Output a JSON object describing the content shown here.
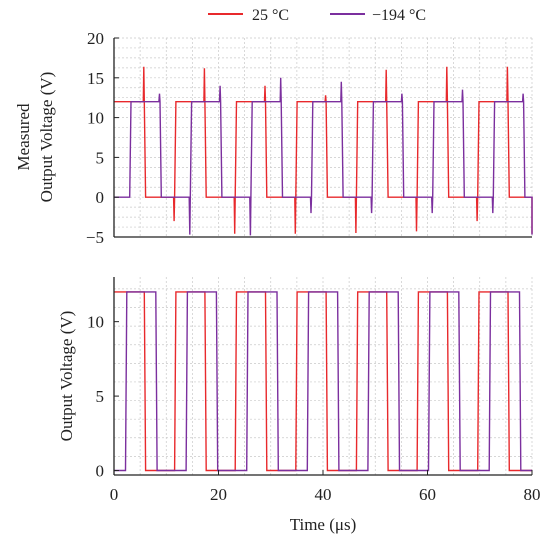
{
  "legend": {
    "position": "top",
    "items": [
      {
        "label": "25 °C",
        "color": "#e8292c"
      },
      {
        "label": "−194 °C",
        "color": "#7b2f9e"
      }
    ]
  },
  "chart_data": [
    {
      "type": "line",
      "xlabel": "",
      "ylabel_line1": "Measured",
      "ylabel_line2": "Output Voltage (V)",
      "xlim": [
        0,
        80
      ],
      "ylim": [
        -5,
        20
      ],
      "xgrid": [
        0,
        5,
        10,
        15,
        20,
        25,
        30,
        35,
        40,
        45,
        50,
        55,
        60,
        65,
        70,
        75,
        80
      ],
      "yticks": [
        -5,
        0,
        5,
        10,
        15,
        20
      ],
      "ytick_labels": [
        "−5",
        "0",
        "5",
        "10",
        "15",
        "20"
      ],
      "grid": true,
      "period_us": 11.6,
      "series": [
        {
          "name": "25 °C",
          "color": "#e8292c",
          "low": 0,
          "high": 12,
          "first_rise_us": 0,
          "overshoot_high": [
            16.4,
            16.2,
            14.0,
            12.8,
            16.0,
            16.4,
            16.4
          ],
          "undershoot_low": [
            -3.0,
            -4.6,
            -4.6,
            -4.5,
            -4.3
          ]
        },
        {
          "name": "−194 °C",
          "color": "#7b2f9e",
          "low": 0,
          "high": 12,
          "first_rise_us": 3.0,
          "overshoot_high": [
            13.0,
            14.0,
            15.0,
            14.5,
            13.0,
            13.5,
            13.0
          ],
          "undershoot_low": [
            -4.7,
            -4.8,
            -2.0,
            -2.0,
            -2.0,
            -2.0
          ]
        }
      ]
    },
    {
      "type": "line",
      "xlabel": "Time (μs)",
      "ylabel": "Output Voltage (V)",
      "xlim": [
        0,
        80
      ],
      "ylim": [
        -0.3,
        13
      ],
      "xgrid": [
        0,
        5,
        10,
        15,
        20,
        25,
        30,
        35,
        40,
        45,
        50,
        55,
        60,
        65,
        70,
        75,
        80
      ],
      "xticks": [
        0,
        20,
        40,
        60,
        80
      ],
      "xtick_labels": [
        "0",
        "20",
        "40",
        "60",
        "80"
      ],
      "yticks": [
        0,
        5,
        10
      ],
      "ytick_labels": [
        "0",
        "5",
        "10"
      ],
      "grid": true,
      "period_us": 11.6,
      "series": [
        {
          "name": "25 °C",
          "color": "#e8292c",
          "low": 0,
          "high": 12,
          "first_rise_us": 0
        },
        {
          "name": "−194 °C",
          "color": "#7b2f9e",
          "low": 0,
          "high": 12,
          "first_rise_us": 2.2
        }
      ]
    }
  ]
}
